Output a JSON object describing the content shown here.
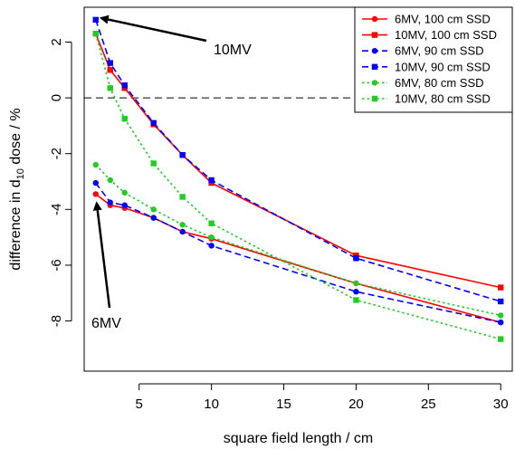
{
  "chart_data": {
    "type": "line",
    "title": "",
    "xlabel": "square field length / cm",
    "ylabel": {
      "prefix": "difference in d",
      "subscript": "10",
      "suffix": " dose / %"
    },
    "xlim": [
      1.2,
      30.8
    ],
    "ylim": [
      -9.8,
      3.25
    ],
    "xticks": [
      5,
      10,
      15,
      20,
      25,
      30
    ],
    "yticks": [
      -8,
      -6,
      -4,
      -2,
      0,
      2
    ],
    "xtick_labels": [
      "5",
      "10",
      "15",
      "20",
      "25",
      "30"
    ],
    "ytick_labels": [
      "-8",
      "-6",
      "-4",
      "-2",
      "0",
      "2"
    ],
    "reference_line": {
      "y": 0,
      "style": "dashed"
    },
    "x": [
      2,
      3,
      4,
      6,
      8,
      10,
      20,
      30
    ],
    "series": [
      {
        "name": "6MV, 100 cm SSD",
        "color": "#ff0000",
        "marker": "circle",
        "dash": "solid",
        "values": [
          -3.45,
          -3.85,
          -3.95,
          -4.3,
          -4.8,
          -5.05,
          -6.65,
          -8.05
        ]
      },
      {
        "name": "10MV, 100 cm SSD",
        "color": "#ff0000",
        "marker": "square",
        "dash": "solid",
        "values": [
          2.3,
          1.0,
          0.35,
          -0.95,
          -2.05,
          -3.05,
          -5.65,
          -6.8
        ]
      },
      {
        "name": "6MV, 90 cm SSD",
        "color": "#0000ff",
        "marker": "circle",
        "dash": "dashed",
        "values": [
          -3.05,
          -3.75,
          -3.85,
          -4.3,
          -4.8,
          -5.3,
          -6.95,
          -8.05
        ]
      },
      {
        "name": "10MV, 90 cm SSD",
        "color": "#0000ff",
        "marker": "square",
        "dash": "dashed",
        "values": [
          2.8,
          1.25,
          0.45,
          -0.9,
          -2.05,
          -2.95,
          -5.75,
          -7.3
        ]
      },
      {
        "name": "6MV, 80 cm SSD",
        "color": "#22cc22",
        "marker": "circle",
        "dash": "dotted",
        "values": [
          -2.4,
          -2.95,
          -3.4,
          -4.0,
          -4.55,
          -5.0,
          -6.65,
          -7.8
        ]
      },
      {
        "name": "10MV, 80 cm SSD",
        "color": "#22cc22",
        "marker": "square",
        "dash": "dotted",
        "values": [
          2.3,
          0.35,
          -0.75,
          -2.35,
          -3.55,
          -4.5,
          -7.25,
          -8.65
        ]
      }
    ],
    "annotations": [
      {
        "text": "10MV",
        "arrow_to": [
          2,
          2.8
        ]
      },
      {
        "text": "6MV",
        "arrow_to": [
          2,
          -3.45
        ]
      }
    ],
    "legend_position": "top-right",
    "grid": false
  }
}
